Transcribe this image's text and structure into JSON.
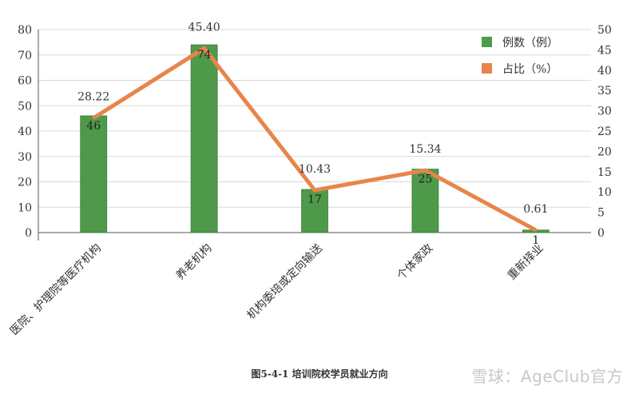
{
  "chart_data": {
    "type": "bar",
    "categories": [
      "医院、护理院等医疗机构",
      "养老机构",
      "机构委培或定向输送",
      "个体家政",
      "重新择业"
    ],
    "series": [
      {
        "name": "例数（例）",
        "type": "bar",
        "axis": "left",
        "color": "#4e9a4a",
        "values": [
          46,
          74,
          17,
          25,
          1
        ]
      },
      {
        "name": "占比（%）",
        "type": "line",
        "axis": "right",
        "color": "#e8854a",
        "values": [
          28.22,
          45.4,
          10.43,
          15.34,
          0.61
        ]
      }
    ],
    "bar_labels": [
      "46",
      "74",
      "17",
      "25",
      "1"
    ],
    "line_labels": [
      "28.22",
      "45.40",
      "10.43",
      "15.34",
      "0.61"
    ],
    "y_left": {
      "min": 0,
      "max": 80,
      "step": 10
    },
    "y_right": {
      "min": 0,
      "max": 50,
      "step": 5
    },
    "grid": true,
    "legend": "top-right",
    "caption": "图5-4-1 培训院校学员就业方向"
  },
  "watermark": "雪球：AgeClub官方"
}
